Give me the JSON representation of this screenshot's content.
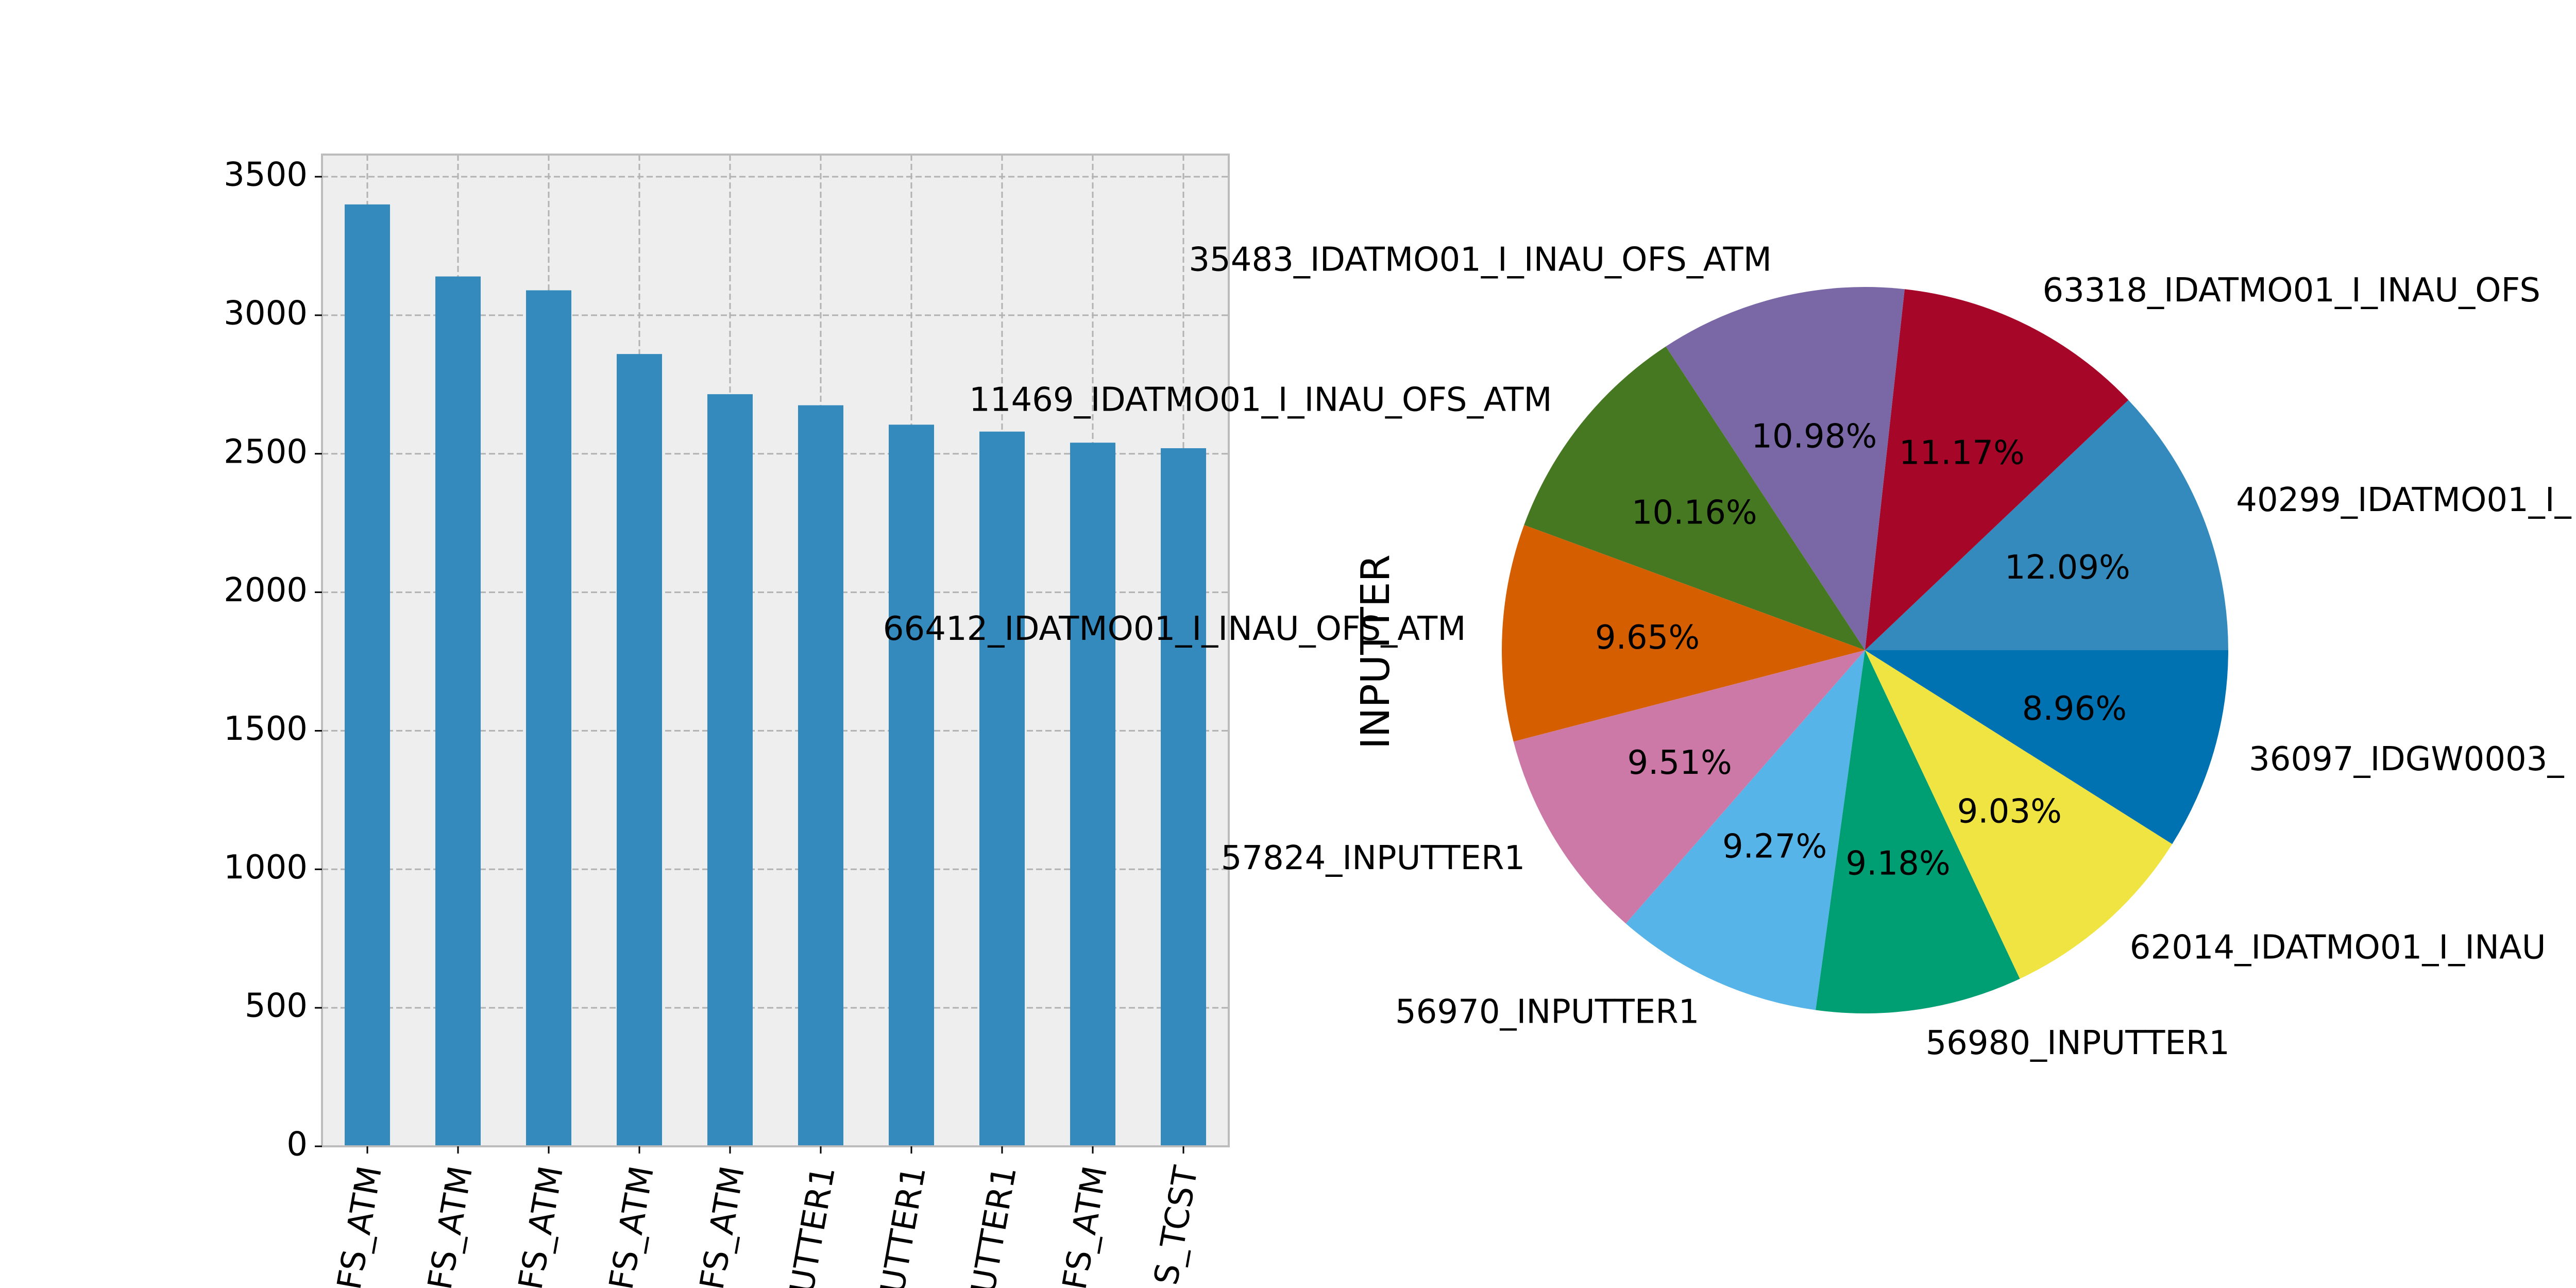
{
  "colors": {
    "bar": "#348abd",
    "axes_bg": "#eeeeee",
    "axes_edge": "#bcbcbc",
    "grid": "#b2b2b2"
  },
  "chart_data": [
    {
      "type": "bar",
      "title": "",
      "xlabel": "",
      "ylabel": "",
      "categories": [
        "FS_ATM",
        "FS_ATM",
        "FS_ATM",
        "FS_ATM",
        "FS_ATM",
        "UTTER1",
        "UTTER1",
        "UTTER1",
        "FS_ATM",
        "S_TCST"
      ],
      "values": [
        3400,
        3140,
        3090,
        2860,
        2715,
        2675,
        2605,
        2580,
        2540,
        2520
      ],
      "yticks": [
        "0",
        "500",
        "1000",
        "1500",
        "2000",
        "2500",
        "3000",
        "3500"
      ],
      "ylim": [
        0,
        3580
      ],
      "grid": true,
      "color": "#348abd"
    },
    {
      "type": "pie",
      "title": "",
      "ylabel": "INPUTTER",
      "labels": [
        "40299_IDATMO01_I_",
        "63318_IDATMO01_I_INAU_OFS",
        "35483_IDATMO01_I_INAU_OFS_ATM",
        "11469_IDATMO01_I_INAU_OFS_ATM",
        "66412_IDATMO01_I_INAU_OFS_ATM",
        "57824_INPUTTER1",
        "56970_INPUTTER1",
        "56980_INPUTTER1",
        "62014_IDATMO01_I_INAU",
        "36097_IDGW0003_"
      ],
      "percent_labels": [
        "12.09%",
        "11.17%",
        "10.98%",
        "10.16%",
        "9.65%",
        "9.51%",
        "9.27%",
        "9.18%",
        "9.03%",
        "8.96%"
      ],
      "values": [
        12.09,
        11.17,
        10.98,
        10.16,
        9.65,
        9.51,
        9.27,
        9.18,
        9.03,
        8.96
      ],
      "colors": [
        "#348abd",
        "#a60628",
        "#7a68a6",
        "#467821",
        "#d55e00",
        "#cc79a7",
        "#56b4e9",
        "#009e73",
        "#f0e442",
        "#0072b2"
      ]
    }
  ]
}
